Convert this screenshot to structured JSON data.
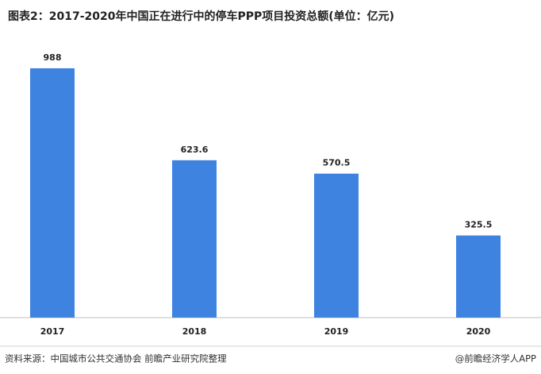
{
  "chart_data": {
    "type": "bar",
    "title": "图表2：2017-2020年中国正在进行中的停车PPP项目投资总额(单位：亿元)",
    "categories": [
      "2017",
      "2018",
      "2019",
      "2020"
    ],
    "values": [
      988,
      623.6,
      570.5,
      325.5
    ],
    "color": "#3f83e0",
    "source": "资料来源：中国城市公共交通协会 前瞻产业研究院整理",
    "credit": "@前瞻经济学人APP"
  }
}
